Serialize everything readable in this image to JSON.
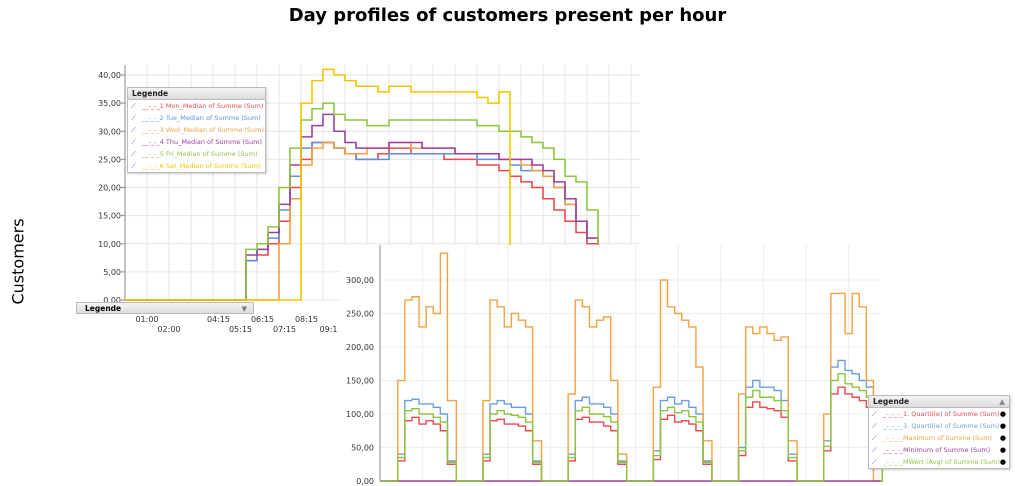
{
  "title": "Day profiles of customers present per hour",
  "ylabel": "Customers",
  "chart_data": [
    {
      "type": "line",
      "step": true,
      "x_unit": "hour of day",
      "x": [
        5,
        5.5,
        6,
        6.5,
        7,
        7.5,
        8,
        8.5,
        9,
        9.5,
        10,
        10.5,
        11,
        11.5,
        12,
        12.5,
        13,
        13.5,
        14,
        14.5,
        15,
        15.5,
        16,
        16.5,
        17,
        17.5,
        18,
        18.5,
        19,
        19.5,
        20,
        20.5,
        21,
        21.5
      ],
      "ylim": [
        0,
        40
      ],
      "yticks": [
        "0,00",
        "5,00",
        "10,00",
        "15,00",
        "20,00",
        "25,00",
        "30,00",
        "35,00",
        "40,00"
      ],
      "xticks": [
        {
          "h": 1,
          "label": "01:00"
        },
        {
          "h": 2,
          "label": "02:00"
        },
        {
          "h": 4.25,
          "label": "04:15"
        },
        {
          "h": 5.25,
          "label": "05:15"
        },
        {
          "h": 6.25,
          "label": "06:15"
        },
        {
          "h": 7.25,
          "label": "07:15"
        },
        {
          "h": 8.25,
          "label": "08:15"
        },
        {
          "h": 9.25,
          "label": "09:1"
        }
      ],
      "grid": true,
      "legend_title": "Legende",
      "series": [
        {
          "name": "__-_-_1 Mon_Median of Summe (Sum)",
          "color": "#e8494f",
          "values": [
            0,
            7,
            8,
            10,
            14,
            20,
            25,
            28,
            28,
            27,
            26,
            25,
            25,
            26,
            27,
            27,
            26,
            26,
            26,
            25,
            25,
            25,
            24,
            24,
            23,
            22,
            21,
            20,
            18,
            16,
            14,
            12,
            10,
            0
          ]
        },
        {
          "name": "__-_-_2 Tue_Median of Summe (Sum)",
          "color": "#5f8fe0",
          "values": [
            0,
            7,
            9,
            11,
            16,
            22,
            27,
            28,
            28,
            27,
            26,
            25,
            25,
            25,
            26,
            26,
            26,
            26,
            26,
            26,
            26,
            26,
            25,
            25,
            25,
            24,
            23,
            23,
            22,
            20,
            17,
            14,
            11,
            0
          ]
        },
        {
          "name": "__-_-_3 Wed_Median of Summe (Sum)",
          "color": "#f5a142",
          "values": [
            0,
            0,
            0,
            0,
            10,
            18,
            24,
            27,
            28,
            27,
            26,
            26,
            27,
            27,
            28,
            28,
            27,
            27,
            27,
            27,
            26,
            26,
            26,
            26,
            25,
            25,
            24,
            23,
            22,
            20,
            17,
            14,
            11,
            0
          ]
        },
        {
          "name": "__-_-_4 Thu_Median of Summe (Sum)",
          "color": "#9b3fa0",
          "values": [
            0,
            8,
            9,
            12,
            17,
            24,
            29,
            31,
            33,
            30,
            28,
            27,
            27,
            27,
            28,
            28,
            28,
            27,
            27,
            27,
            26,
            26,
            26,
            26,
            25,
            25,
            25,
            24,
            23,
            21,
            18,
            14,
            11,
            0
          ]
        },
        {
          "name": "__-_-_5 Fri_Median of Summe (Sum)",
          "color": "#8cc63f",
          "values": [
            0,
            9,
            10,
            13,
            20,
            27,
            32,
            34,
            35,
            33,
            32,
            32,
            31,
            31,
            32,
            32,
            32,
            32,
            32,
            32,
            32,
            32,
            31,
            31,
            30,
            30,
            29,
            28,
            27,
            25,
            22,
            21,
            16,
            0
          ]
        },
        {
          "name": "__-_-_6 Sat_Median of Summe (Sum)",
          "color": "#f5c400",
          "values": [
            0,
            0,
            0,
            0,
            0,
            0,
            35,
            39,
            41,
            40,
            39,
            38,
            38,
            37,
            38,
            38,
            37,
            37,
            37,
            37,
            37,
            37,
            36,
            35,
            37,
            0,
            0,
            0,
            0,
            0,
            0,
            0,
            0,
            0
          ]
        }
      ],
      "bottom_legend_label": "Legende"
    },
    {
      "type": "line",
      "step": true,
      "x_unit": "hour of week (days Mon-Sat)",
      "day_hours": [
        6,
        8,
        10,
        12,
        14,
        16,
        18,
        20
      ],
      "ylim": [
        0,
        300
      ],
      "yticks": [
        "0,00",
        "50,00",
        "100,00",
        "150,00",
        "200,00",
        "250,00",
        "300,00"
      ],
      "grid": true,
      "legend_title": "Legende",
      "series": [
        {
          "name": "_-_-_-_1. Quartil(e) of Summe (Sum)",
          "color": "#e8494f",
          "days": [
            [
              30,
              90,
              95,
              85,
              90,
              85,
              75,
              25
            ],
            [
              30,
              90,
              92,
              85,
              85,
              82,
              75,
              25
            ],
            [
              30,
              92,
              95,
              88,
              88,
              82,
              75,
              25
            ],
            [
              32,
              92,
              98,
              88,
              90,
              85,
              75,
              25
            ],
            [
              38,
              110,
              118,
              110,
              108,
              105,
              95,
              30
            ],
            [
              45,
              130,
              140,
              130,
              125,
              120,
              110,
              30
            ]
          ]
        },
        {
          "name": "_-_-_-_3. Quartil(e) of Summe (Sum)",
          "color": "#6b9fdc",
          "days": [
            [
              40,
              120,
              122,
              115,
              115,
              110,
              100,
              30
            ],
            [
              40,
              115,
              120,
              115,
              110,
              110,
              100,
              30
            ],
            [
              40,
              120,
              125,
              115,
              115,
              110,
              100,
              30
            ],
            [
              45,
              120,
              125,
              115,
              120,
              110,
              100,
              30
            ],
            [
              50,
              140,
              150,
              140,
              140,
              135,
              120,
              40
            ],
            [
              60,
              170,
              180,
              165,
              160,
              150,
              140,
              40
            ]
          ]
        },
        {
          "name": "_-_-_-_Maximum of Summe (Sum)",
          "color": "#f5a142",
          "days": [
            [
              150,
              270,
              275,
              230,
              260,
              250,
              340,
              120
            ],
            [
              120,
              270,
              260,
              230,
              250,
              240,
              230,
              60
            ],
            [
              130,
              270,
              260,
              230,
              240,
              245,
              150,
              40
            ],
            [
              140,
              300,
              260,
              250,
              240,
              230,
              170,
              60
            ],
            [
              130,
              230,
              220,
              230,
              220,
              210,
              215,
              60
            ],
            [
              100,
              280,
              280,
              220,
              280,
              260,
              150,
              0
            ]
          ]
        },
        {
          "name": "_-_-_-_Minimum of Summe (Sum)",
          "color": "#9b3fa0",
          "days": [
            [
              0,
              0,
              0,
              0,
              0,
              0,
              0,
              0
            ],
            [
              0,
              0,
              0,
              0,
              0,
              0,
              0,
              0
            ],
            [
              0,
              0,
              0,
              0,
              0,
              0,
              0,
              0
            ],
            [
              0,
              0,
              0,
              0,
              0,
              0,
              0,
              0
            ],
            [
              0,
              0,
              0,
              0,
              0,
              0,
              0,
              0
            ],
            [
              0,
              0,
              0,
              0,
              0,
              0,
              0,
              0
            ]
          ]
        },
        {
          "name": "_-_-_-_MWert (Avg) of Summe (Sum)",
          "color": "#8cc63f",
          "days": [
            [
              35,
              105,
              108,
              100,
              100,
              95,
              88,
              28
            ],
            [
              35,
              100,
              105,
              100,
              98,
              95,
              88,
              28
            ],
            [
              35,
              105,
              110,
              100,
              100,
              96,
              88,
              28
            ],
            [
              38,
              105,
              110,
              102,
              105,
              96,
              88,
              28
            ],
            [
              45,
              125,
              135,
              125,
              125,
              120,
              105,
              35
            ],
            [
              52,
              150,
              160,
              145,
              140,
              135,
              125,
              35
            ]
          ]
        }
      ]
    }
  ]
}
